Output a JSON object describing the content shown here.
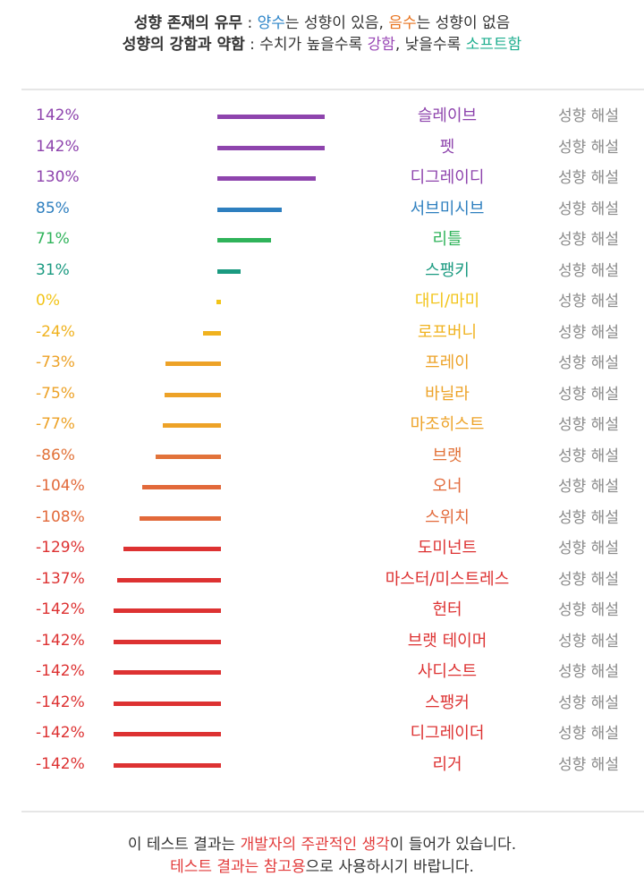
{
  "legend": {
    "line1": {
      "title": "성향 존재의 유무",
      "sep": " : ",
      "pos_word": "양수",
      "pos_rest": "는 성향이 있음, ",
      "neg_word": "음수",
      "neg_rest": "는 성향이 없음"
    },
    "line2": {
      "title": "성향의 강함과 약함",
      "sep": " : 수치가 높을수록 ",
      "strong_word": "강함",
      "mid": ", 낮을수록 ",
      "soft_word": "소프트함"
    },
    "colors": {
      "blue": "#2f86c9",
      "orange": "#e8731e",
      "purple": "#9a49b6",
      "teal": "#1fae8f"
    }
  },
  "chart_data": {
    "type": "bar",
    "orientation": "horizontal",
    "ylim": [
      -142,
      142
    ],
    "zero_axis_x_relative": "left of label column",
    "categories": [
      "슬레이브",
      "펫",
      "디그레이디",
      "서브미시브",
      "리틀",
      "스팽키",
      "대디/마미",
      "로프버니",
      "프레이",
      "바닐라",
      "마조히스트",
      "브랫",
      "오너",
      "스위치",
      "도미넌트",
      "마스터/미스트레스",
      "헌터",
      "브랫 테이머",
      "사디스트",
      "스팽커",
      "디그레이더",
      "리거"
    ],
    "values": [
      142,
      142,
      130,
      85,
      71,
      31,
      0,
      -24,
      -73,
      -75,
      -77,
      -86,
      -104,
      -108,
      -129,
      -137,
      -142,
      -142,
      -142,
      -142,
      -142,
      -142
    ],
    "labels_pct": [
      "142%",
      "142%",
      "130%",
      "85%",
      "71%",
      "31%",
      "0%",
      "-24%",
      "-73%",
      "-75%",
      "-77%",
      "-86%",
      "-104%",
      "-108%",
      "-129%",
      "-137%",
      "-142%",
      "-142%",
      "-142%",
      "-142%",
      "-142%",
      "-142%"
    ],
    "colors": [
      "#8e44ad",
      "#8e44ad",
      "#8e44ad",
      "#2e7fbf",
      "#2fb35a",
      "#1a9a80",
      "#f2c418",
      "#f0b21e",
      "#eda227",
      "#eda227",
      "#eda227",
      "#e2733a",
      "#e2693a",
      "#e2693a",
      "#dd3232",
      "#dd3232",
      "#dd3232",
      "#dd3232",
      "#dd3232",
      "#dd3232",
      "#dd3232",
      "#dd3232"
    ],
    "desc_label": "성향 해설"
  },
  "footer": {
    "line1_a": "이 테스트 결과는 ",
    "line1_b": "개발자의 주관적인 생각",
    "line1_c": "이 들어가 있습니다.",
    "line2_a": "테스트 결과는 참고용",
    "line2_b": "으로 사용하시기 바랍니다.",
    "accent": "#e23b3b"
  }
}
